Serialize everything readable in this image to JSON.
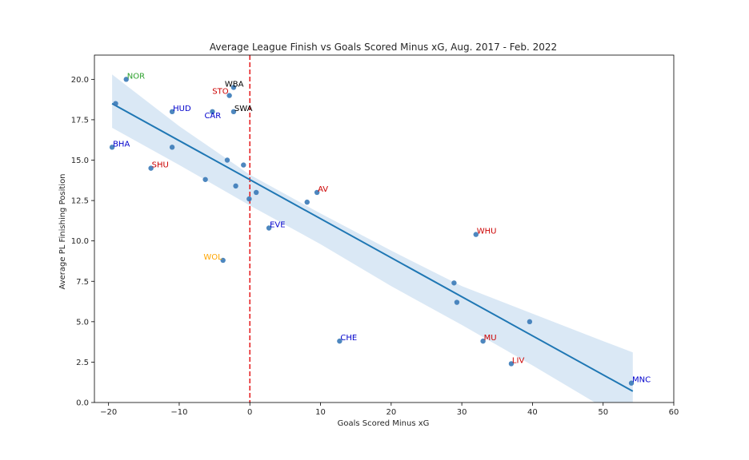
{
  "chart_data": {
    "type": "scatter",
    "title": "Average League Finish vs Goals Scored Minus xG, Aug. 2017 - Feb. 2022",
    "xlabel": "Goals Scored Minus xG",
    "ylabel": "Average PL Finishing Position",
    "xlim": [
      -22,
      60
    ],
    "ylim": [
      0,
      21.5
    ],
    "xticks": [
      -20,
      -10,
      0,
      10,
      20,
      30,
      40,
      50,
      60
    ],
    "xtick_labels": [
      "−20",
      "−10",
      "0",
      "10",
      "20",
      "30",
      "40",
      "50",
      "60"
    ],
    "yticks": [
      0,
      2.5,
      5,
      7.5,
      10,
      12.5,
      15,
      17.5,
      20
    ],
    "ytick_labels": [
      "0.0",
      "2.5",
      "5.0",
      "7.5",
      "10.0",
      "12.5",
      "15.0",
      "17.5",
      "20.0"
    ],
    "grid": false,
    "point_color": "#3a7ab8",
    "line_color": "#1f77b4",
    "band_color": "#c6dbef",
    "zero_line": {
      "x": 0,
      "color": "#e41a1c",
      "style": "dashed"
    },
    "regression": {
      "x_start": -19.5,
      "y_start": 18.5,
      "x_end": 54.2,
      "y_end": 0.7
    },
    "confidence_band": {
      "x": [
        -19.5,
        -10,
        0,
        10,
        20,
        30,
        40,
        50,
        54.2
      ],
      "upper": [
        20.3,
        17.1,
        14.1,
        11.7,
        9.4,
        7.2,
        5.5,
        3.8,
        3.1
      ],
      "lower": [
        17.0,
        14.7,
        12.2,
        9.8,
        7.2,
        4.8,
        2.3,
        -0.3,
        -1.5
      ]
    },
    "points": [
      {
        "x": -17.5,
        "y": 20.0,
        "label": "NOR",
        "color": "#2ca02c"
      },
      {
        "x": -19.0,
        "y": 18.5,
        "label": "",
        "color": ""
      },
      {
        "x": -11.0,
        "y": 18.0,
        "label": "HUD",
        "color": "#0000cc"
      },
      {
        "x": -19.5,
        "y": 15.8,
        "label": "BHA",
        "color": "#0000cc"
      },
      {
        "x": -11.0,
        "y": 15.8,
        "label": "",
        "color": ""
      },
      {
        "x": -14.0,
        "y": 14.5,
        "label": "SHU",
        "color": "#cc0000"
      },
      {
        "x": -6.3,
        "y": 13.8,
        "label": "",
        "color": ""
      },
      {
        "x": -2.3,
        "y": 19.5,
        "label": "WBA",
        "color": "#000000"
      },
      {
        "x": -2.9,
        "y": 19.0,
        "label": "STO",
        "color": "#cc0000"
      },
      {
        "x": -5.3,
        "y": 18.0,
        "label": "CAR",
        "color": "#0000cc"
      },
      {
        "x": -2.3,
        "y": 18.0,
        "label": "SWA",
        "color": "#000000"
      },
      {
        "x": -3.2,
        "y": 15.0,
        "label": "",
        "color": ""
      },
      {
        "x": -0.9,
        "y": 14.7,
        "label": "",
        "color": ""
      },
      {
        "x": -2.0,
        "y": 13.4,
        "label": "",
        "color": ""
      },
      {
        "x": 0.9,
        "y": 13.0,
        "label": "",
        "color": ""
      },
      {
        "x": -0.1,
        "y": 12.6,
        "label": "",
        "color": ""
      },
      {
        "x": 9.5,
        "y": 13.0,
        "label": "AV",
        "color": "#cc0000"
      },
      {
        "x": 8.1,
        "y": 12.4,
        "label": "",
        "color": ""
      },
      {
        "x": 2.7,
        "y": 10.8,
        "label": "EVE",
        "color": "#0000cc"
      },
      {
        "x": -3.8,
        "y": 8.8,
        "label": "WOL",
        "color": "#ffa500"
      },
      {
        "x": 32.0,
        "y": 10.4,
        "label": "WHU",
        "color": "#cc0000"
      },
      {
        "x": 28.9,
        "y": 7.4,
        "label": "",
        "color": ""
      },
      {
        "x": 29.3,
        "y": 6.2,
        "label": "",
        "color": ""
      },
      {
        "x": 39.6,
        "y": 5.0,
        "label": "",
        "color": ""
      },
      {
        "x": 12.7,
        "y": 3.8,
        "label": "CHE",
        "color": "#0000cc"
      },
      {
        "x": 33.0,
        "y": 3.8,
        "label": "MU",
        "color": "#cc0000"
      },
      {
        "x": 37.0,
        "y": 2.4,
        "label": "LIV",
        "color": "#cc0000"
      },
      {
        "x": 54.0,
        "y": 1.2,
        "label": "MNC",
        "color": "#0000cc"
      }
    ]
  }
}
